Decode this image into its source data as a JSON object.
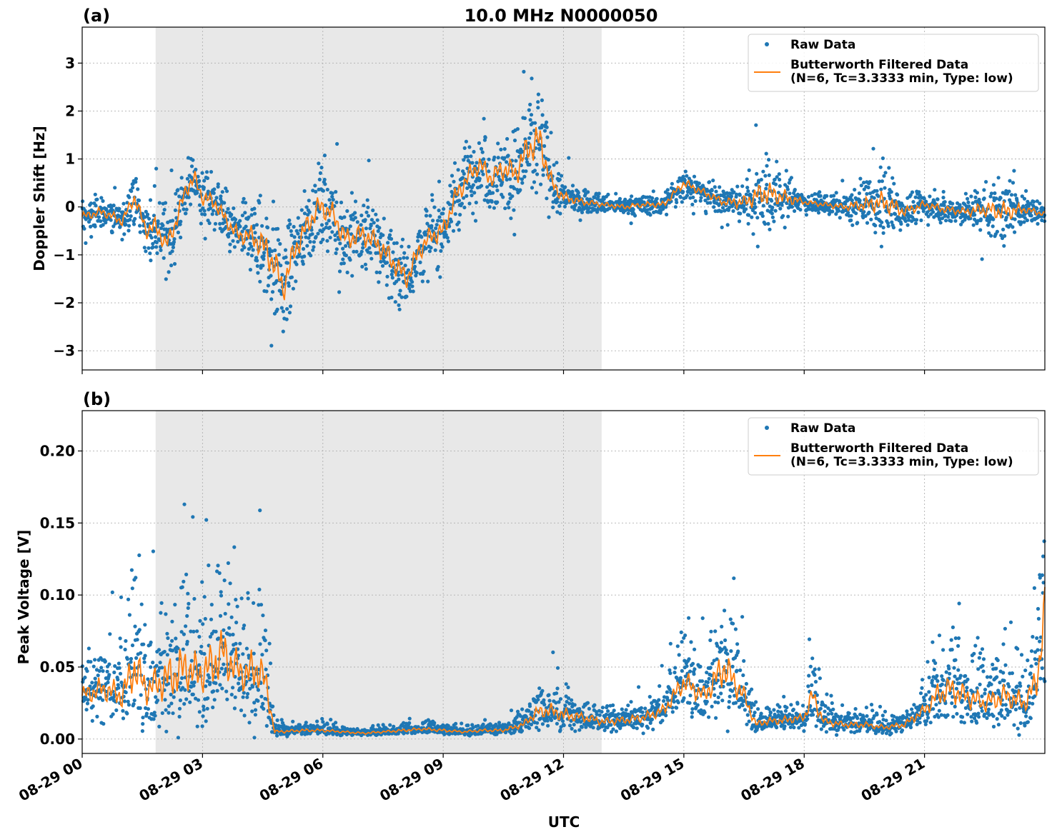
{
  "chart_data": [
    {
      "type": "scatter",
      "panel_label": "(a)",
      "title": "10.0 MHz N0000050",
      "ylabel": "Doppler Shift [Hz]",
      "xlabel": "",
      "xlim_hours": [
        0,
        24
      ],
      "ylim": [
        -3.4,
        3.75
      ],
      "yticks": [
        -3,
        -2,
        -1,
        0,
        1,
        2,
        3
      ],
      "ytick_labels": [
        "−3",
        "−2",
        "−1",
        "0",
        "1",
        "2",
        "3"
      ],
      "shaded_region_hours": [
        1.83,
        12.95
      ],
      "grid": true,
      "legend_position": "top-right",
      "series": [
        {
          "name": "Raw Data",
          "style": "dots",
          "color": "#1f77b4",
          "x_hours": [
            0,
            0.5,
            1,
            1.3,
            1.6,
            1.83,
            2.1,
            2.3,
            2.6,
            2.8,
            3,
            3.3,
            3.6,
            3.9,
            4.2,
            4.5,
            4.8,
            5.0,
            5.3,
            5.6,
            5.9,
            6.2,
            6.6,
            6.8,
            7.1,
            7.4,
            7.8,
            8.1,
            8.4,
            8.7,
            9.0,
            9.3,
            9.6,
            9.9,
            10.2,
            10.5,
            10.8,
            11.1,
            11.4,
            11.7,
            12.0,
            12.5,
            13,
            13.5,
            14,
            14.5,
            15,
            15.5,
            16,
            16.5,
            17,
            17.5,
            18,
            18.5,
            19,
            19.5,
            20,
            20.5,
            21,
            21.5,
            22,
            22.5,
            23,
            23.5,
            24
          ],
          "values": [
            -0.2,
            -0.1,
            -0.3,
            0.2,
            -0.5,
            -0.4,
            -0.8,
            -0.4,
            0.4,
            0.6,
            0.2,
            0.1,
            -0.3,
            -0.6,
            -0.6,
            -0.8,
            -1.2,
            -1.7,
            -0.9,
            -0.4,
            0.0,
            -0.1,
            -0.7,
            -0.6,
            -0.6,
            -0.8,
            -1.2,
            -1.5,
            -0.9,
            -0.6,
            -0.5,
            0.2,
            0.6,
            0.9,
            0.6,
            0.8,
            0.7,
            1.2,
            1.4,
            0.5,
            0.2,
            0.1,
            0.05,
            0.0,
            0.05,
            0.05,
            0.5,
            0.3,
            0.1,
            0.1,
            0.3,
            0.2,
            0.1,
            0.05,
            0.0,
            0.05,
            0.1,
            -0.1,
            0.05,
            -0.05,
            -0.1,
            -0.05,
            -0.1,
            -0.05,
            -0.15
          ],
          "spread": [
            0.35,
            0.35,
            0.4,
            0.5,
            0.6,
            0.7,
            0.7,
            0.7,
            0.7,
            0.6,
            0.6,
            0.6,
            0.6,
            0.6,
            0.8,
            1.2,
            1.3,
            1.2,
            1.0,
            0.9,
            0.9,
            0.9,
            0.9,
            0.9,
            0.9,
            0.9,
            0.9,
            0.8,
            0.8,
            0.8,
            0.8,
            0.8,
            0.8,
            0.8,
            0.8,
            0.9,
            1.0,
            1.2,
            1.4,
            0.7,
            0.4,
            0.25,
            0.2,
            0.2,
            0.2,
            0.25,
            0.35,
            0.3,
            0.3,
            0.5,
            1.0,
            0.6,
            0.2,
            0.2,
            0.25,
            0.5,
            0.9,
            0.4,
            0.3,
            0.3,
            0.3,
            0.6,
            0.8,
            0.3,
            0.2
          ]
        },
        {
          "name": "Butterworth Filtered Data\n(N=6, Tc=3.3333 min, Type: low)",
          "style": "line",
          "color": "#ff7f0e",
          "x_hours": [
            0,
            0.5,
            1,
            1.3,
            1.6,
            1.83,
            2.1,
            2.3,
            2.6,
            2.8,
            3,
            3.3,
            3.6,
            3.9,
            4.2,
            4.5,
            4.8,
            5.0,
            5.3,
            5.6,
            5.9,
            6.2,
            6.6,
            6.8,
            7.1,
            7.4,
            7.8,
            8.1,
            8.4,
            8.7,
            9.0,
            9.3,
            9.6,
            9.9,
            10.2,
            10.5,
            10.8,
            11.1,
            11.4,
            11.7,
            12.0,
            12.5,
            13,
            13.5,
            14,
            14.5,
            15,
            15.5,
            16,
            16.5,
            17,
            17.5,
            18,
            18.5,
            19,
            19.5,
            20,
            20.5,
            21,
            21.5,
            22,
            22.5,
            23,
            23.5,
            24
          ],
          "values": [
            -0.2,
            -0.1,
            -0.3,
            0.2,
            -0.5,
            -0.4,
            -0.8,
            -0.4,
            0.4,
            0.6,
            0.2,
            0.1,
            -0.3,
            -0.6,
            -0.6,
            -0.8,
            -1.2,
            -1.7,
            -0.9,
            -0.4,
            0.0,
            -0.1,
            -0.7,
            -0.6,
            -0.6,
            -0.8,
            -1.2,
            -1.5,
            -0.9,
            -0.6,
            -0.5,
            0.2,
            0.6,
            0.9,
            0.6,
            0.8,
            0.7,
            1.2,
            1.4,
            0.5,
            0.2,
            0.1,
            0.05,
            0.0,
            0.05,
            0.05,
            0.5,
            0.3,
            0.1,
            0.1,
            0.3,
            0.2,
            0.1,
            0.05,
            0.0,
            0.05,
            0.1,
            -0.1,
            0.05,
            -0.05,
            -0.1,
            -0.05,
            -0.1,
            -0.05,
            -0.15
          ]
        }
      ]
    },
    {
      "type": "scatter",
      "panel_label": "(b)",
      "title": "",
      "ylabel": "Peak Voltage [V]",
      "xlabel": "UTC",
      "xlim_hours": [
        0,
        24
      ],
      "ylim": [
        -0.01,
        0.228
      ],
      "yticks": [
        0.0,
        0.05,
        0.1,
        0.15,
        0.2
      ],
      "ytick_labels": [
        "0.00",
        "0.05",
        "0.10",
        "0.15",
        "0.20"
      ],
      "xticks_hours": [
        0,
        3,
        6,
        9,
        12,
        15,
        18,
        21
      ],
      "xtick_labels": [
        "08-29 00",
        "08-29 03",
        "08-29 06",
        "08-29 09",
        "08-29 12",
        "08-29 15",
        "08-29 18",
        "08-29 21"
      ],
      "shaded_region_hours": [
        1.83,
        12.95
      ],
      "grid": true,
      "legend_position": "top-right",
      "series": [
        {
          "name": "Raw Data",
          "style": "dots",
          "color": "#1f77b4",
          "x_hours": [
            0,
            0.5,
            1,
            1.3,
            1.6,
            2.0,
            2.3,
            2.6,
            2.9,
            3.2,
            3.5,
            3.8,
            4.1,
            4.4,
            4.6,
            4.8,
            5.5,
            6,
            6.5,
            7,
            7.5,
            8,
            8.5,
            9,
            9.5,
            10,
            10.5,
            11,
            11.3,
            11.6,
            12,
            12.5,
            13,
            13.5,
            14,
            14.5,
            15,
            15.5,
            16,
            16.5,
            16.8,
            17,
            17.5,
            18,
            18.2,
            18.5,
            19,
            19.5,
            20,
            20.5,
            21,
            21.3,
            21.6,
            22,
            22.5,
            23,
            23.5,
            23.8,
            24
          ],
          "values": [
            0.03,
            0.035,
            0.03,
            0.05,
            0.035,
            0.04,
            0.045,
            0.05,
            0.045,
            0.05,
            0.06,
            0.05,
            0.045,
            0.05,
            0.035,
            0.005,
            0.006,
            0.006,
            0.005,
            0.004,
            0.005,
            0.006,
            0.007,
            0.006,
            0.005,
            0.006,
            0.006,
            0.01,
            0.018,
            0.02,
            0.017,
            0.015,
            0.012,
            0.013,
            0.015,
            0.02,
            0.04,
            0.03,
            0.05,
            0.03,
            0.01,
            0.012,
            0.013,
            0.015,
            0.03,
            0.012,
            0.01,
            0.01,
            0.008,
            0.01,
            0.02,
            0.03,
            0.035,
            0.03,
            0.025,
            0.03,
            0.025,
            0.04,
            0.09
          ],
          "spread": [
            0.025,
            0.03,
            0.035,
            0.06,
            0.04,
            0.05,
            0.06,
            0.06,
            0.05,
            0.06,
            0.07,
            0.05,
            0.05,
            0.06,
            0.04,
            0.004,
            0.004,
            0.004,
            0.003,
            0.003,
            0.003,
            0.004,
            0.004,
            0.004,
            0.003,
            0.004,
            0.004,
            0.008,
            0.015,
            0.02,
            0.018,
            0.012,
            0.01,
            0.01,
            0.012,
            0.015,
            0.03,
            0.025,
            0.05,
            0.025,
            0.008,
            0.01,
            0.01,
            0.01,
            0.03,
            0.01,
            0.008,
            0.008,
            0.006,
            0.008,
            0.015,
            0.03,
            0.035,
            0.03,
            0.025,
            0.03,
            0.025,
            0.04,
            0.07
          ]
        },
        {
          "name": "Butterworth Filtered Data\n(N=6, Tc=3.3333 min, Type: low)",
          "style": "line",
          "color": "#ff7f0e",
          "x_hours": [
            0,
            0.5,
            1,
            1.3,
            1.6,
            2.0,
            2.3,
            2.6,
            2.9,
            3.2,
            3.5,
            3.8,
            4.1,
            4.4,
            4.6,
            4.8,
            5.5,
            6,
            6.5,
            7,
            7.5,
            8,
            8.5,
            9,
            9.5,
            10,
            10.5,
            11,
            11.3,
            11.6,
            12,
            12.5,
            13,
            13.5,
            14,
            14.5,
            15,
            15.5,
            16,
            16.5,
            16.8,
            17,
            17.5,
            18,
            18.2,
            18.5,
            19,
            19.5,
            20,
            20.5,
            21,
            21.3,
            21.6,
            22,
            22.5,
            23,
            23.5,
            23.8,
            24
          ],
          "values": [
            0.03,
            0.035,
            0.03,
            0.05,
            0.035,
            0.04,
            0.045,
            0.05,
            0.045,
            0.05,
            0.06,
            0.05,
            0.045,
            0.05,
            0.035,
            0.005,
            0.006,
            0.006,
            0.005,
            0.004,
            0.005,
            0.006,
            0.007,
            0.006,
            0.005,
            0.006,
            0.006,
            0.01,
            0.018,
            0.02,
            0.017,
            0.015,
            0.012,
            0.013,
            0.015,
            0.02,
            0.04,
            0.03,
            0.05,
            0.03,
            0.01,
            0.012,
            0.013,
            0.015,
            0.03,
            0.012,
            0.01,
            0.01,
            0.008,
            0.01,
            0.02,
            0.03,
            0.035,
            0.03,
            0.025,
            0.03,
            0.025,
            0.04,
            0.09
          ]
        }
      ]
    }
  ]
}
